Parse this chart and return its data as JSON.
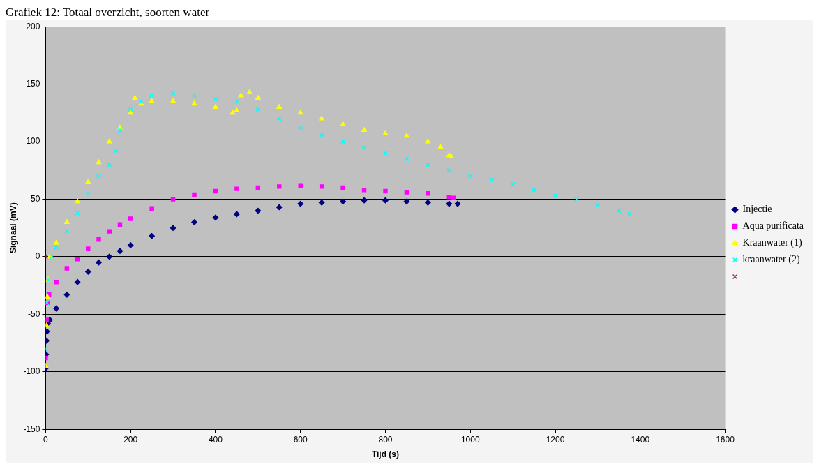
{
  "chart_data": {
    "type": "scatter",
    "title": "Grafiek 12: Totaal overzicht, soorten water",
    "xlabel": "Tijd (s)",
    "ylabel": "Signaal (mV)",
    "xlim": [
      0,
      1600
    ],
    "xticks": [
      0,
      200,
      400,
      600,
      800,
      1000,
      1200,
      1400,
      1600
    ],
    "ylim": [
      -150,
      200
    ],
    "yticks": [
      -150,
      -100,
      -50,
      0,
      50,
      100,
      150,
      200
    ],
    "grid": "y",
    "legend": "right",
    "series": [
      {
        "name": "Injectie",
        "color": "#000080",
        "marker": "diamond",
        "x": [
          0,
          1,
          2,
          3,
          5,
          10,
          25,
          50,
          75,
          100,
          125,
          150,
          175,
          200,
          250,
          300,
          350,
          400,
          450,
          500,
          550,
          600,
          650,
          700,
          750,
          800,
          850,
          900,
          950,
          970
        ],
        "values": [
          -97,
          -85,
          -73,
          -65,
          -58,
          -55,
          -45,
          -33,
          -22,
          -13,
          -5,
          0,
          5,
          10,
          18,
          25,
          30,
          34,
          37,
          40,
          43,
          46,
          47,
          48,
          49,
          49,
          48,
          47,
          46,
          46
        ]
      },
      {
        "name": "Aqua purificata",
        "color": "#ff00ff",
        "marker": "square",
        "x": [
          0,
          2,
          4,
          8,
          25,
          50,
          75,
          100,
          125,
          150,
          175,
          200,
          250,
          300,
          350,
          400,
          450,
          500,
          550,
          600,
          650,
          700,
          750,
          800,
          850,
          900,
          950,
          960
        ],
        "values": [
          -88,
          -55,
          -40,
          -33,
          -22,
          -10,
          -2,
          7,
          15,
          22,
          28,
          33,
          42,
          50,
          54,
          57,
          59,
          60,
          61,
          62,
          61,
          60,
          58,
          57,
          56,
          55,
          52,
          51
        ]
      },
      {
        "name": "Kraanwater (1)",
        "color": "#ffff00",
        "marker": "triangle",
        "x": [
          0,
          2,
          4,
          6,
          10,
          25,
          50,
          75,
          100,
          125,
          150,
          175,
          200,
          210,
          225,
          250,
          300,
          350,
          400,
          440,
          450,
          460,
          480,
          500,
          550,
          600,
          650,
          700,
          750,
          800,
          850,
          900,
          930,
          950,
          955
        ],
        "values": [
          -95,
          -60,
          -35,
          -20,
          0,
          12,
          30,
          48,
          65,
          82,
          100,
          112,
          125,
          138,
          133,
          135,
          135,
          133,
          130,
          125,
          127,
          140,
          143,
          138,
          130,
          125,
          120,
          115,
          110,
          107,
          105,
          100,
          95,
          88,
          87
        ]
      },
      {
        "name": "kraanwater (2)",
        "color": "#00ffff",
        "marker": "cross",
        "x": [
          0,
          3,
          6,
          15,
          25,
          50,
          75,
          100,
          125,
          150,
          165,
          175,
          200,
          225,
          250,
          300,
          350,
          400,
          450,
          500,
          550,
          600,
          650,
          700,
          750,
          800,
          850,
          900,
          950,
          1000,
          1050,
          1100,
          1150,
          1200,
          1250,
          1300,
          1350,
          1375
        ],
        "values": [
          -80,
          -40,
          -20,
          0,
          8,
          22,
          38,
          55,
          70,
          80,
          92,
          110,
          128,
          135,
          140,
          142,
          140,
          137,
          135,
          128,
          120,
          112,
          106,
          100,
          95,
          90,
          85,
          80,
          75,
          70,
          67,
          63,
          58,
          53,
          50,
          45,
          40,
          37
        ]
      },
      {
        "color": "#993366",
        "marker": "cross",
        "x": [
          0
        ],
        "values": [
          0
        ]
      }
    ]
  }
}
